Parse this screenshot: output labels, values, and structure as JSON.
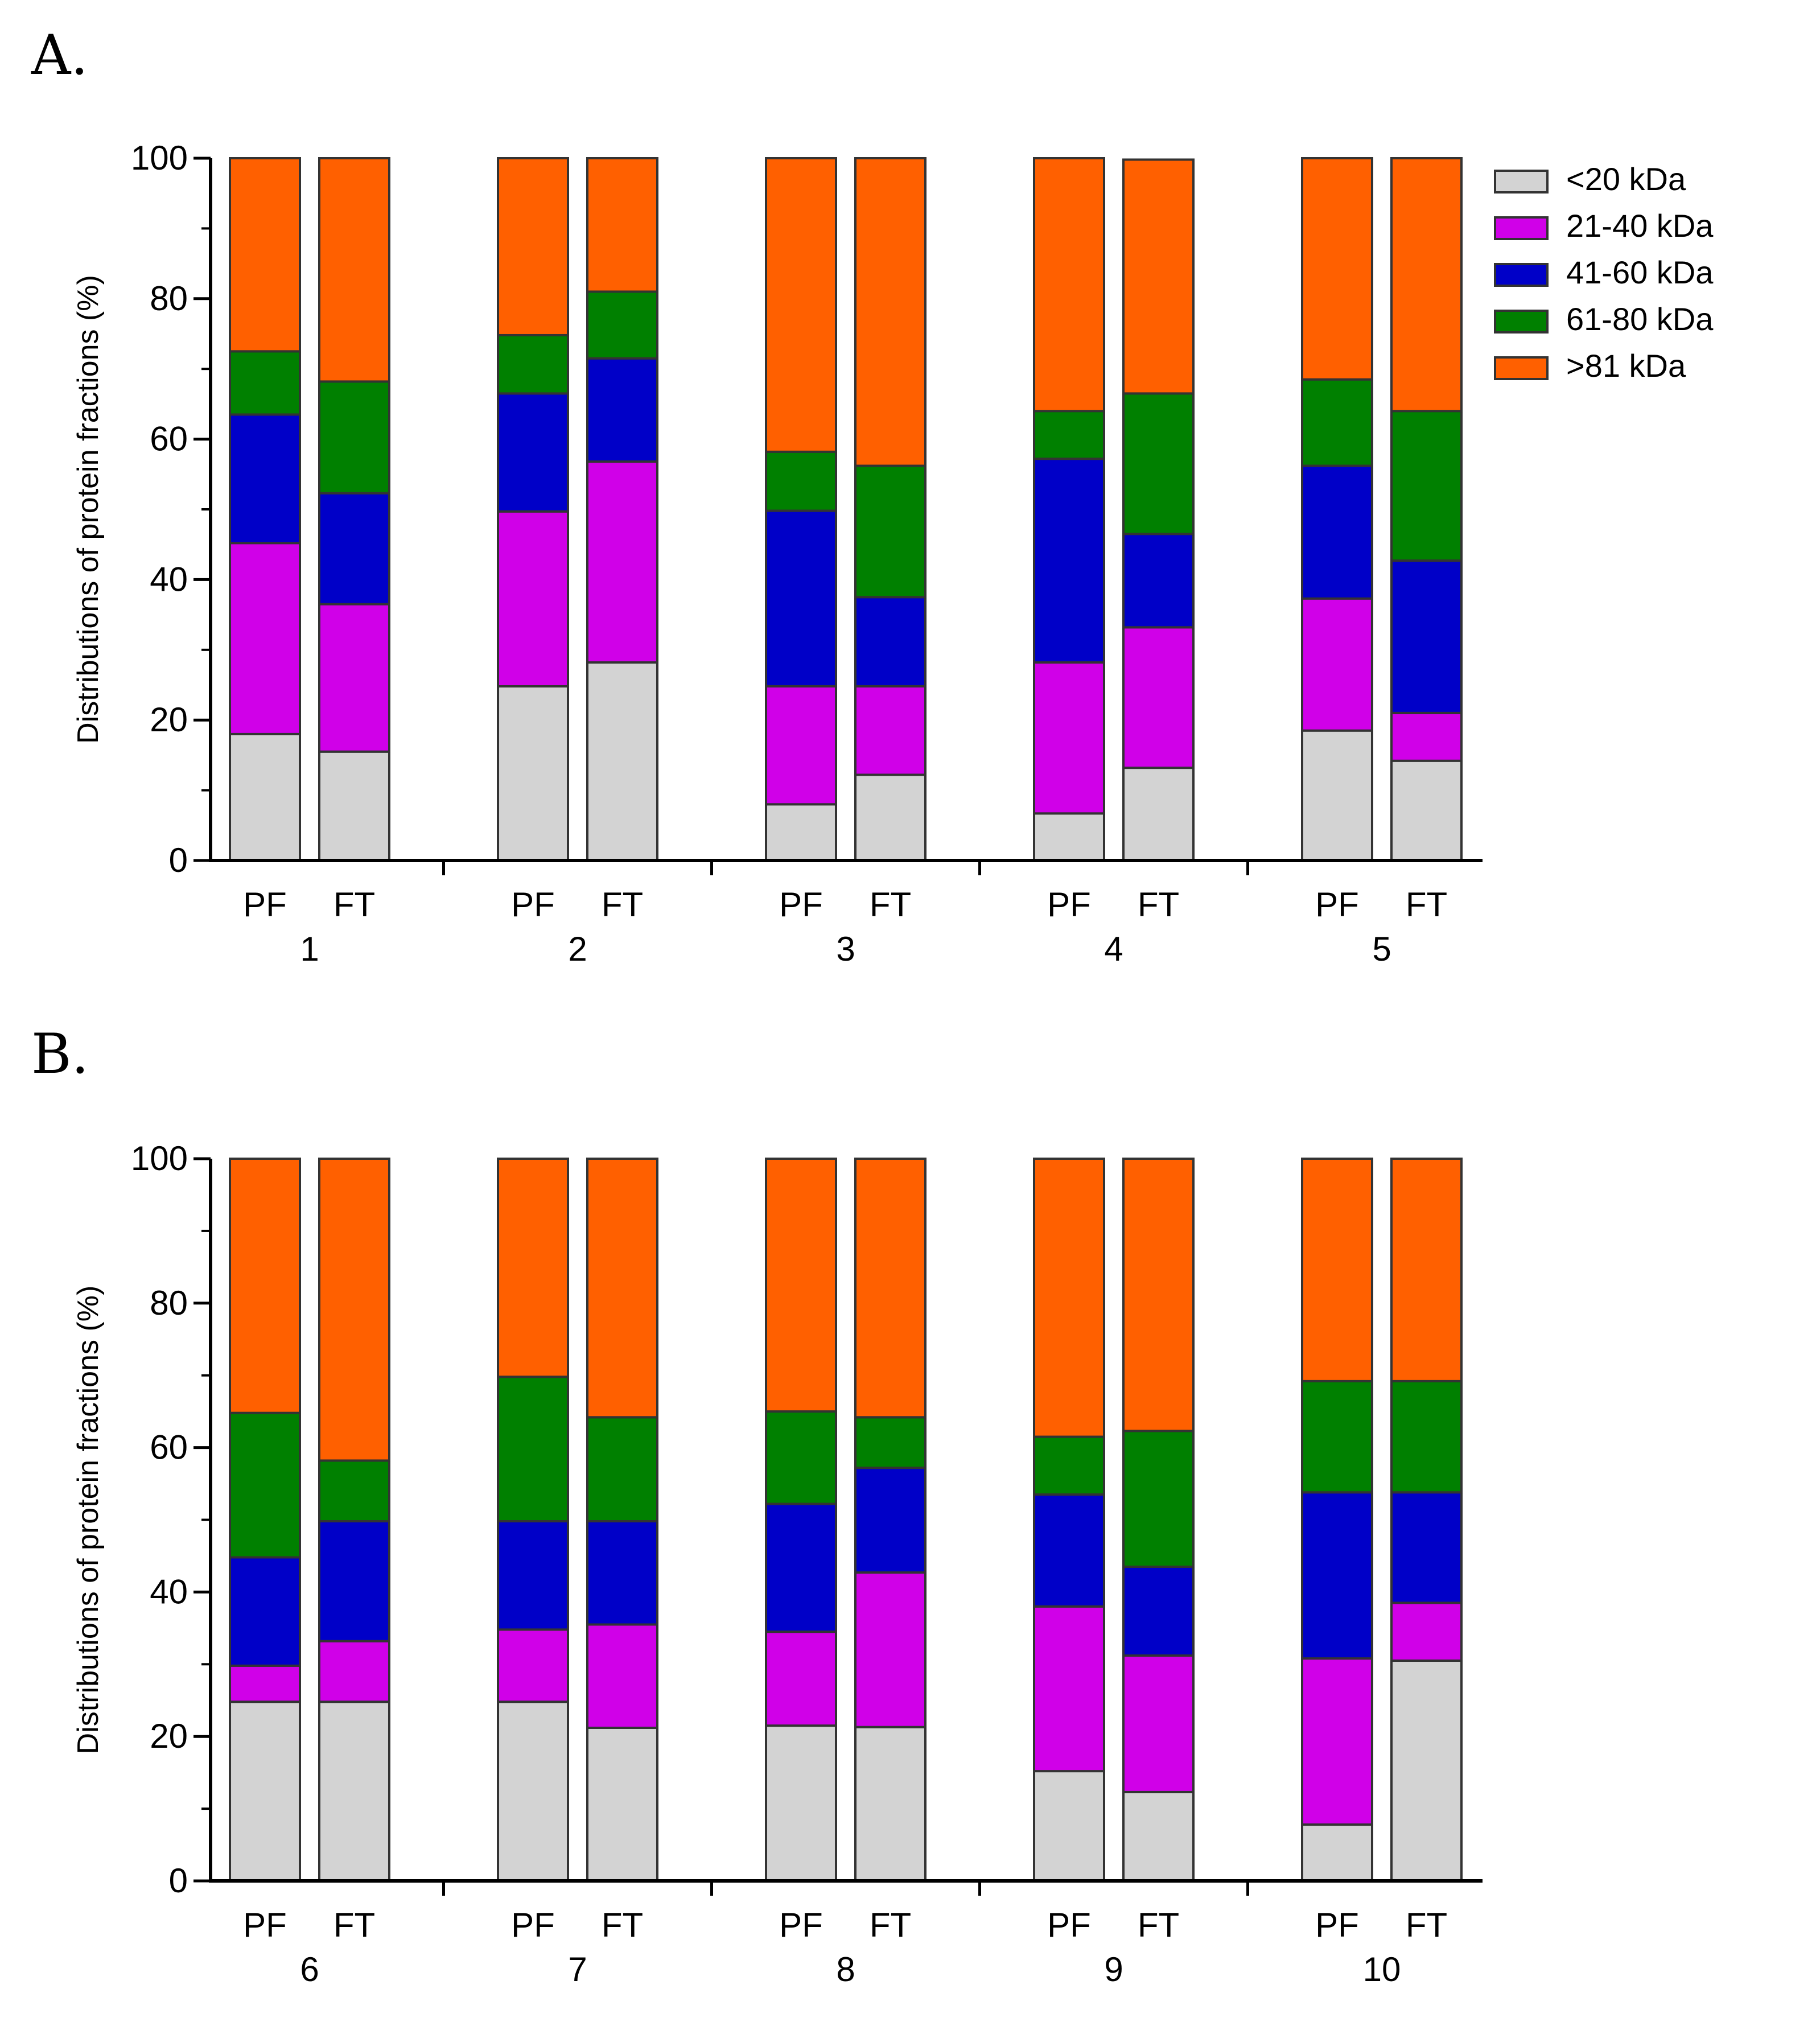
{
  "segment_labels": [
    "<20 kDa",
    "21-40 kDa",
    "41-60 kDa",
    "61-80 kDa",
    ">81 kDa"
  ],
  "segment_colors": [
    "#d3d3d3",
    "#d000e8",
    "#0000c8",
    "#008000",
    "#ff6000"
  ],
  "chart_data": [
    {
      "type": "bar",
      "stacked": true,
      "panel_label": "A.",
      "ylabel": "Distributions of protein fractions (%)",
      "ylim": [
        0,
        100
      ],
      "yticks": [
        0,
        20,
        40,
        60,
        80,
        100
      ],
      "legend_position": "top-right",
      "groups": [
        {
          "label": "1",
          "bars": [
            {
              "label": "PF",
              "cumulative": [
                18,
                45.2,
                63.5,
                72.5,
                100
              ]
            },
            {
              "label": "FT",
              "cumulative": [
                15.5,
                36.5,
                52.3,
                68.2,
                100
              ]
            }
          ]
        },
        {
          "label": "2",
          "bars": [
            {
              "label": "PF",
              "cumulative": [
                24.8,
                49.7,
                66.5,
                74.8,
                100
              ]
            },
            {
              "label": "FT",
              "cumulative": [
                28.2,
                56.8,
                71.5,
                81,
                100
              ]
            }
          ]
        },
        {
          "label": "3",
          "bars": [
            {
              "label": "PF",
              "cumulative": [
                8,
                24.8,
                49.8,
                58.2,
                100
              ]
            },
            {
              "label": "FT",
              "cumulative": [
                12.2,
                24.8,
                37.5,
                56.2,
                100
              ]
            }
          ]
        },
        {
          "label": "4",
          "bars": [
            {
              "label": "PF",
              "cumulative": [
                6.7,
                28.2,
                57.2,
                64,
                100
              ]
            },
            {
              "label": "FT",
              "cumulative": [
                13.2,
                33.2,
                46.5,
                66.5,
                99.8
              ]
            }
          ]
        },
        {
          "label": "5",
          "bars": [
            {
              "label": "PF",
              "cumulative": [
                18.5,
                37.3,
                56.2,
                68.5,
                100
              ]
            },
            {
              "label": "FT",
              "cumulative": [
                14.2,
                21,
                42.7,
                64,
                100
              ]
            }
          ]
        }
      ]
    },
    {
      "type": "bar",
      "stacked": true,
      "panel_label": "B.",
      "ylabel": "Distributions of protein fractions (%)",
      "ylim": [
        0,
        100
      ],
      "yticks": [
        0,
        20,
        40,
        60,
        80,
        100
      ],
      "groups": [
        {
          "label": "6",
          "bars": [
            {
              "label": "PF",
              "cumulative": [
                24.8,
                29.8,
                44.8,
                64.8,
                100
              ]
            },
            {
              "label": "FT",
              "cumulative": [
                24.8,
                33.2,
                49.8,
                58.2,
                100
              ]
            }
          ]
        },
        {
          "label": "7",
          "bars": [
            {
              "label": "PF",
              "cumulative": [
                24.8,
                34.8,
                49.8,
                69.8,
                100
              ]
            },
            {
              "label": "FT",
              "cumulative": [
                21.2,
                35.5,
                49.8,
                64.2,
                100
              ]
            }
          ]
        },
        {
          "label": "8",
          "bars": [
            {
              "label": "PF",
              "cumulative": [
                21.5,
                34.5,
                52.2,
                65,
                100
              ]
            },
            {
              "label": "FT",
              "cumulative": [
                21.3,
                42.7,
                57.2,
                64.2,
                100
              ]
            }
          ]
        },
        {
          "label": "9",
          "bars": [
            {
              "label": "PF",
              "cumulative": [
                15.2,
                38,
                53.5,
                61.5,
                100
              ]
            },
            {
              "label": "FT",
              "cumulative": [
                12.3,
                31.2,
                43.5,
                62.3,
                100
              ]
            }
          ]
        },
        {
          "label": "10",
          "bars": [
            {
              "label": "PF",
              "cumulative": [
                7.8,
                30.8,
                53.8,
                69.2,
                100
              ]
            },
            {
              "label": "FT",
              "cumulative": [
                30.5,
                38.5,
                53.8,
                69.2,
                100
              ]
            }
          ]
        }
      ]
    }
  ]
}
